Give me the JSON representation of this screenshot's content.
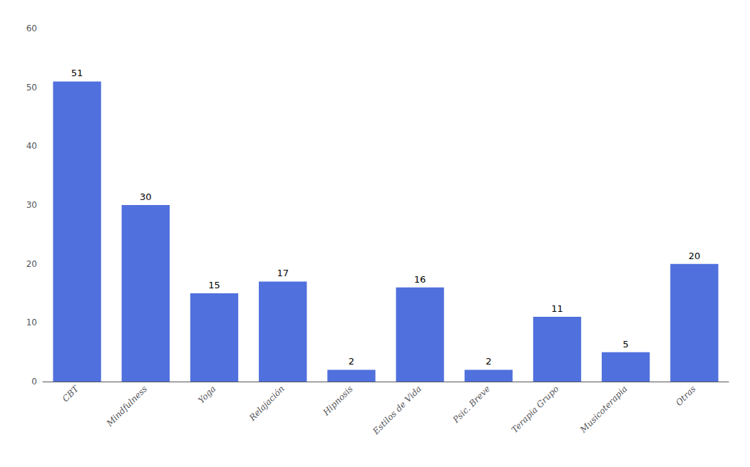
{
  "chart_data": {
    "type": "bar",
    "categories": [
      "CBT",
      "Mindfulness",
      "Yoga",
      "Relajación",
      "Hipnosis",
      "Estilos de Vida",
      "Psic. Breve",
      "Terapia Grupo",
      "Musicoterapia",
      "Otras"
    ],
    "values": [
      51,
      30,
      15,
      17,
      2,
      16,
      2,
      11,
      5,
      20
    ],
    "ylim": [
      0,
      60
    ],
    "yticks": [
      0,
      10,
      20,
      30,
      40,
      50,
      60
    ],
    "grid": false,
    "data_labels": true
  }
}
